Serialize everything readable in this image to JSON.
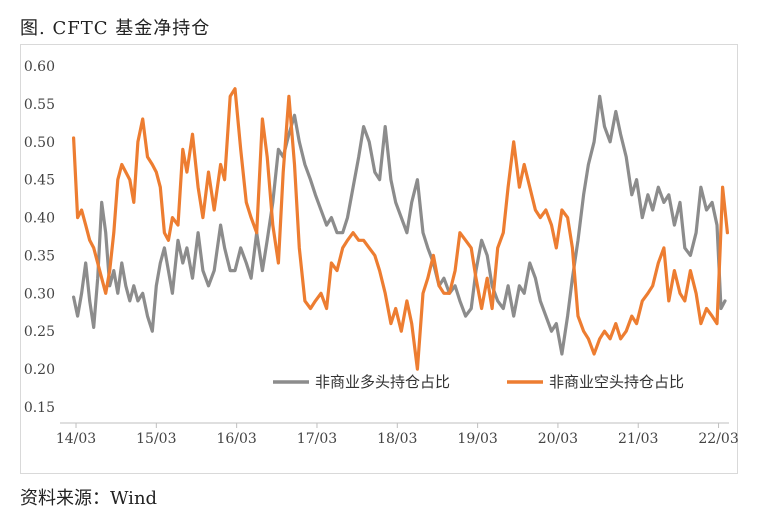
{
  "header": {
    "title": "图. CFTC 基金净持仓"
  },
  "footer": {
    "source": "资料来源：Wind"
  },
  "chart_data": {
    "type": "line",
    "title": "图. CFTC 基金净持仓",
    "xlabel": "",
    "ylabel": "",
    "ylim": [
      0.15,
      0.6
    ],
    "yticks": [
      "0.15",
      "0.20",
      "0.25",
      "0.30",
      "0.35",
      "0.40",
      "0.45",
      "0.50",
      "0.55",
      "0.60"
    ],
    "x_tick_labels": [
      "14/03",
      "15/03",
      "16/03",
      "17/03",
      "18/03",
      "19/03",
      "20/03",
      "21/03",
      "22/03"
    ],
    "xlim": [
      2014.2,
      2022.38
    ],
    "grid": false,
    "legend_position": "bottom-right inside plot",
    "series": [
      {
        "name": "非商业多头持仓占比",
        "color": "#8c8c8c",
        "points": [
          [
            2014.22,
            0.295
          ],
          [
            2014.27,
            0.27
          ],
          [
            2014.32,
            0.3
          ],
          [
            2014.37,
            0.34
          ],
          [
            2014.42,
            0.29
          ],
          [
            2014.47,
            0.255
          ],
          [
            2014.52,
            0.32
          ],
          [
            2014.57,
            0.42
          ],
          [
            2014.62,
            0.38
          ],
          [
            2014.67,
            0.31
          ],
          [
            2014.72,
            0.33
          ],
          [
            2014.77,
            0.3
          ],
          [
            2014.82,
            0.34
          ],
          [
            2014.87,
            0.31
          ],
          [
            2014.92,
            0.29
          ],
          [
            2014.97,
            0.31
          ],
          [
            2015.02,
            0.29
          ],
          [
            2015.08,
            0.3
          ],
          [
            2015.14,
            0.27
          ],
          [
            2015.2,
            0.25
          ],
          [
            2015.25,
            0.31
          ],
          [
            2015.3,
            0.34
          ],
          [
            2015.35,
            0.36
          ],
          [
            2015.4,
            0.33
          ],
          [
            2015.45,
            0.3
          ],
          [
            2015.52,
            0.37
          ],
          [
            2015.58,
            0.34
          ],
          [
            2015.63,
            0.36
          ],
          [
            2015.7,
            0.32
          ],
          [
            2015.77,
            0.38
          ],
          [
            2015.83,
            0.33
          ],
          [
            2015.9,
            0.31
          ],
          [
            2015.97,
            0.33
          ],
          [
            2016.05,
            0.39
          ],
          [
            2016.1,
            0.36
          ],
          [
            2016.17,
            0.33
          ],
          [
            2016.23,
            0.33
          ],
          [
            2016.3,
            0.36
          ],
          [
            2016.37,
            0.34
          ],
          [
            2016.43,
            0.32
          ],
          [
            2016.5,
            0.38
          ],
          [
            2016.57,
            0.33
          ],
          [
            2016.63,
            0.37
          ],
          [
            2016.7,
            0.42
          ],
          [
            2016.77,
            0.49
          ],
          [
            2016.83,
            0.48
          ],
          [
            2016.9,
            0.51
          ],
          [
            2016.97,
            0.535
          ],
          [
            2017.03,
            0.5
          ],
          [
            2017.1,
            0.47
          ],
          [
            2017.17,
            0.45
          ],
          [
            2017.23,
            0.43
          ],
          [
            2017.3,
            0.41
          ],
          [
            2017.37,
            0.39
          ],
          [
            2017.43,
            0.4
          ],
          [
            2017.5,
            0.38
          ],
          [
            2017.57,
            0.38
          ],
          [
            2017.63,
            0.4
          ],
          [
            2017.7,
            0.44
          ],
          [
            2017.77,
            0.48
          ],
          [
            2017.83,
            0.52
          ],
          [
            2017.9,
            0.5
          ],
          [
            2017.97,
            0.46
          ],
          [
            2018.03,
            0.45
          ],
          [
            2018.1,
            0.52
          ],
          [
            2018.17,
            0.45
          ],
          [
            2018.23,
            0.42
          ],
          [
            2018.3,
            0.4
          ],
          [
            2018.37,
            0.38
          ],
          [
            2018.43,
            0.42
          ],
          [
            2018.5,
            0.45
          ],
          [
            2018.57,
            0.38
          ],
          [
            2018.63,
            0.36
          ],
          [
            2018.7,
            0.34
          ],
          [
            2018.77,
            0.31
          ],
          [
            2018.83,
            0.32
          ],
          [
            2018.9,
            0.3
          ],
          [
            2018.97,
            0.31
          ],
          [
            2019.03,
            0.29
          ],
          [
            2019.1,
            0.27
          ],
          [
            2019.17,
            0.28
          ],
          [
            2019.23,
            0.33
          ],
          [
            2019.3,
            0.37
          ],
          [
            2019.37,
            0.35
          ],
          [
            2019.43,
            0.31
          ],
          [
            2019.5,
            0.29
          ],
          [
            2019.57,
            0.28
          ],
          [
            2019.63,
            0.31
          ],
          [
            2019.7,
            0.27
          ],
          [
            2019.77,
            0.31
          ],
          [
            2019.83,
            0.3
          ],
          [
            2019.9,
            0.34
          ],
          [
            2019.97,
            0.32
          ],
          [
            2020.03,
            0.29
          ],
          [
            2020.1,
            0.27
          ],
          [
            2020.17,
            0.25
          ],
          [
            2020.23,
            0.26
          ],
          [
            2020.3,
            0.22
          ],
          [
            2020.37,
            0.27
          ],
          [
            2020.43,
            0.32
          ],
          [
            2020.5,
            0.37
          ],
          [
            2020.57,
            0.43
          ],
          [
            2020.63,
            0.47
          ],
          [
            2020.7,
            0.5
          ],
          [
            2020.77,
            0.56
          ],
          [
            2020.83,
            0.52
          ],
          [
            2020.9,
            0.5
          ],
          [
            2020.97,
            0.54
          ],
          [
            2021.03,
            0.51
          ],
          [
            2021.1,
            0.48
          ],
          [
            2021.17,
            0.43
          ],
          [
            2021.23,
            0.45
          ],
          [
            2021.3,
            0.4
          ],
          [
            2021.37,
            0.43
          ],
          [
            2021.43,
            0.41
          ],
          [
            2021.5,
            0.44
          ],
          [
            2021.57,
            0.42
          ],
          [
            2021.63,
            0.43
          ],
          [
            2021.7,
            0.39
          ],
          [
            2021.77,
            0.42
          ],
          [
            2021.83,
            0.36
          ],
          [
            2021.9,
            0.35
          ],
          [
            2021.97,
            0.38
          ],
          [
            2022.03,
            0.44
          ],
          [
            2022.1,
            0.41
          ],
          [
            2022.17,
            0.42
          ],
          [
            2022.23,
            0.39
          ],
          [
            2022.28,
            0.28
          ],
          [
            2022.33,
            0.29
          ]
        ]
      },
      {
        "name": "非商业空头持仓占比",
        "color": "#ed7d31",
        "points": [
          [
            2014.22,
            0.505
          ],
          [
            2014.27,
            0.4
          ],
          [
            2014.32,
            0.41
          ],
          [
            2014.37,
            0.39
          ],
          [
            2014.42,
            0.37
          ],
          [
            2014.47,
            0.36
          ],
          [
            2014.52,
            0.34
          ],
          [
            2014.57,
            0.32
          ],
          [
            2014.62,
            0.3
          ],
          [
            2014.67,
            0.33
          ],
          [
            2014.72,
            0.38
          ],
          [
            2014.77,
            0.45
          ],
          [
            2014.82,
            0.47
          ],
          [
            2014.87,
            0.46
          ],
          [
            2014.92,
            0.45
          ],
          [
            2014.97,
            0.42
          ],
          [
            2015.02,
            0.5
          ],
          [
            2015.08,
            0.53
          ],
          [
            2015.14,
            0.48
          ],
          [
            2015.2,
            0.47
          ],
          [
            2015.25,
            0.46
          ],
          [
            2015.3,
            0.44
          ],
          [
            2015.35,
            0.38
          ],
          [
            2015.4,
            0.37
          ],
          [
            2015.45,
            0.4
          ],
          [
            2015.52,
            0.39
          ],
          [
            2015.58,
            0.49
          ],
          [
            2015.63,
            0.46
          ],
          [
            2015.7,
            0.51
          ],
          [
            2015.77,
            0.44
          ],
          [
            2015.83,
            0.4
          ],
          [
            2015.9,
            0.46
          ],
          [
            2015.97,
            0.41
          ],
          [
            2016.05,
            0.47
          ],
          [
            2016.1,
            0.45
          ],
          [
            2016.17,
            0.56
          ],
          [
            2016.23,
            0.57
          ],
          [
            2016.3,
            0.49
          ],
          [
            2016.37,
            0.42
          ],
          [
            2016.43,
            0.4
          ],
          [
            2016.5,
            0.38
          ],
          [
            2016.57,
            0.53
          ],
          [
            2016.63,
            0.48
          ],
          [
            2016.7,
            0.39
          ],
          [
            2016.77,
            0.34
          ],
          [
            2016.83,
            0.46
          ],
          [
            2016.9,
            0.56
          ],
          [
            2016.97,
            0.47
          ],
          [
            2017.03,
            0.36
          ],
          [
            2017.1,
            0.29
          ],
          [
            2017.17,
            0.28
          ],
          [
            2017.23,
            0.29
          ],
          [
            2017.3,
            0.3
          ],
          [
            2017.37,
            0.28
          ],
          [
            2017.43,
            0.34
          ],
          [
            2017.5,
            0.33
          ],
          [
            2017.57,
            0.36
          ],
          [
            2017.63,
            0.37
          ],
          [
            2017.7,
            0.38
          ],
          [
            2017.77,
            0.37
          ],
          [
            2017.83,
            0.37
          ],
          [
            2017.9,
            0.36
          ],
          [
            2017.97,
            0.35
          ],
          [
            2018.03,
            0.33
          ],
          [
            2018.1,
            0.3
          ],
          [
            2018.17,
            0.26
          ],
          [
            2018.23,
            0.28
          ],
          [
            2018.3,
            0.25
          ],
          [
            2018.37,
            0.29
          ],
          [
            2018.43,
            0.26
          ],
          [
            2018.5,
            0.2
          ],
          [
            2018.57,
            0.3
          ],
          [
            2018.63,
            0.32
          ],
          [
            2018.7,
            0.35
          ],
          [
            2018.77,
            0.31
          ],
          [
            2018.83,
            0.3
          ],
          [
            2018.9,
            0.3
          ],
          [
            2018.97,
            0.33
          ],
          [
            2019.03,
            0.38
          ],
          [
            2019.1,
            0.37
          ],
          [
            2019.17,
            0.36
          ],
          [
            2019.23,
            0.32
          ],
          [
            2019.3,
            0.28
          ],
          [
            2019.37,
            0.32
          ],
          [
            2019.43,
            0.28
          ],
          [
            2019.5,
            0.36
          ],
          [
            2019.57,
            0.38
          ],
          [
            2019.63,
            0.44
          ],
          [
            2019.7,
            0.5
          ],
          [
            2019.77,
            0.44
          ],
          [
            2019.83,
            0.47
          ],
          [
            2019.9,
            0.44
          ],
          [
            2019.97,
            0.41
          ],
          [
            2020.03,
            0.4
          ],
          [
            2020.1,
            0.41
          ],
          [
            2020.17,
            0.39
          ],
          [
            2020.23,
            0.36
          ],
          [
            2020.3,
            0.41
          ],
          [
            2020.37,
            0.4
          ],
          [
            2020.43,
            0.36
          ],
          [
            2020.5,
            0.27
          ],
          [
            2020.57,
            0.25
          ],
          [
            2020.63,
            0.24
          ],
          [
            2020.7,
            0.22
          ],
          [
            2020.77,
            0.24
          ],
          [
            2020.83,
            0.25
          ],
          [
            2020.9,
            0.24
          ],
          [
            2020.97,
            0.26
          ],
          [
            2021.03,
            0.24
          ],
          [
            2021.1,
            0.25
          ],
          [
            2021.17,
            0.27
          ],
          [
            2021.23,
            0.26
          ],
          [
            2021.3,
            0.29
          ],
          [
            2021.37,
            0.3
          ],
          [
            2021.43,
            0.31
          ],
          [
            2021.5,
            0.34
          ],
          [
            2021.57,
            0.36
          ],
          [
            2021.63,
            0.29
          ],
          [
            2021.7,
            0.33
          ],
          [
            2021.77,
            0.3
          ],
          [
            2021.83,
            0.29
          ],
          [
            2021.9,
            0.33
          ],
          [
            2021.97,
            0.3
          ],
          [
            2022.03,
            0.26
          ],
          [
            2022.1,
            0.28
          ],
          [
            2022.17,
            0.27
          ],
          [
            2022.23,
            0.26
          ],
          [
            2022.27,
            0.36
          ],
          [
            2022.3,
            0.44
          ],
          [
            2022.34,
            0.4
          ],
          [
            2022.36,
            0.38
          ]
        ]
      }
    ]
  }
}
